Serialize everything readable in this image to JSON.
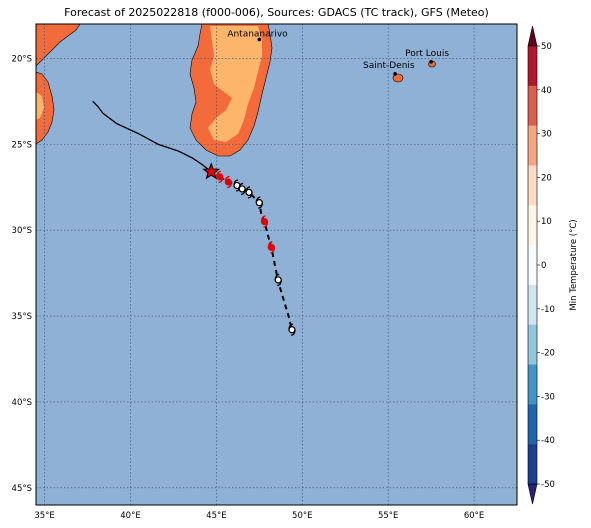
{
  "title": "Forecast of 2025022818 (f000-006), Sources: GDACS (TC track), GFS (Meteo)",
  "map": {
    "lon_range": [
      34.5,
      62.5
    ],
    "lat_range": [
      -46,
      -18
    ],
    "lon_ticks": [
      "35°E",
      "40°E",
      "45°E",
      "50°E",
      "55°E",
      "60°E"
    ],
    "lat_ticks": [
      "20°S",
      "25°S",
      "30°S",
      "35°S",
      "40°S",
      "45°S"
    ],
    "ocean_color": "#8fb1d6",
    "land_color_warm": "#f36b3b",
    "land_color_mild": "#fdb46b",
    "grid": true
  },
  "cities": [
    {
      "name": "Antananarivo",
      "lon": 47.5,
      "lat": -18.9
    },
    {
      "name": "Port Louis",
      "lon": 57.5,
      "lat": -20.2
    },
    {
      "name": "Saint-Denis",
      "lon": 55.4,
      "lat": -20.9
    }
  ],
  "track": {
    "observed_color": "#000000",
    "current_position_marker": "red-star",
    "observed": [
      [
        37.8,
        -22.5
      ],
      [
        38.1,
        -22.8
      ],
      [
        38.4,
        -23.2
      ],
      [
        39.2,
        -23.8
      ],
      [
        40.5,
        -24.4
      ],
      [
        41.6,
        -25.0
      ],
      [
        42.8,
        -25.4
      ],
      [
        43.6,
        -25.8
      ],
      [
        44.2,
        -26.2
      ],
      [
        44.7,
        -26.6
      ]
    ],
    "forecast": [
      [
        45.2,
        -26.9
      ],
      [
        45.7,
        -27.2
      ],
      [
        46.2,
        -27.4
      ],
      [
        46.5,
        -27.6
      ],
      [
        46.9,
        -27.8
      ],
      [
        47.2,
        -28.1
      ],
      [
        47.5,
        -28.4
      ],
      [
        47.6,
        -29.0
      ],
      [
        47.8,
        -29.5
      ],
      [
        48.0,
        -30.3
      ],
      [
        48.2,
        -31.0
      ],
      [
        48.4,
        -32.0
      ],
      [
        48.6,
        -33.0
      ],
      [
        48.9,
        -34.0
      ],
      [
        49.2,
        -35.0
      ],
      [
        49.4,
        -35.8
      ]
    ],
    "cyclone_symbols": [
      {
        "lon": 45.2,
        "lat": -26.9,
        "color": "red"
      },
      {
        "lon": 45.7,
        "lat": -27.2,
        "color": "red"
      },
      {
        "lon": 46.2,
        "lat": -27.4,
        "color": "black"
      },
      {
        "lon": 46.5,
        "lat": -27.6,
        "color": "black"
      },
      {
        "lon": 46.9,
        "lat": -27.8,
        "color": "black"
      },
      {
        "lon": 47.5,
        "lat": -28.4,
        "color": "black"
      },
      {
        "lon": 47.8,
        "lat": -29.5,
        "color": "red"
      },
      {
        "lon": 48.2,
        "lat": -31.0,
        "color": "red"
      },
      {
        "lon": 48.6,
        "lat": -32.9,
        "color": "black"
      },
      {
        "lon": 49.4,
        "lat": -35.8,
        "color": "black"
      }
    ]
  },
  "colorbar": {
    "label": "Min Temperature (°C)",
    "ticks": [
      "50",
      "40",
      "30",
      "20",
      "10",
      "0",
      "-10",
      "-20",
      "-30",
      "-40",
      "-50"
    ],
    "colors": [
      "#67001f",
      "#b2182b",
      "#d6604d",
      "#f4a582",
      "#fddbc7",
      "#fff5e6",
      "#f7fbff",
      "#d1e5f0",
      "#92c5de",
      "#4393c3",
      "#2166ac",
      "#1c3f8f",
      "#28217a"
    ]
  }
}
